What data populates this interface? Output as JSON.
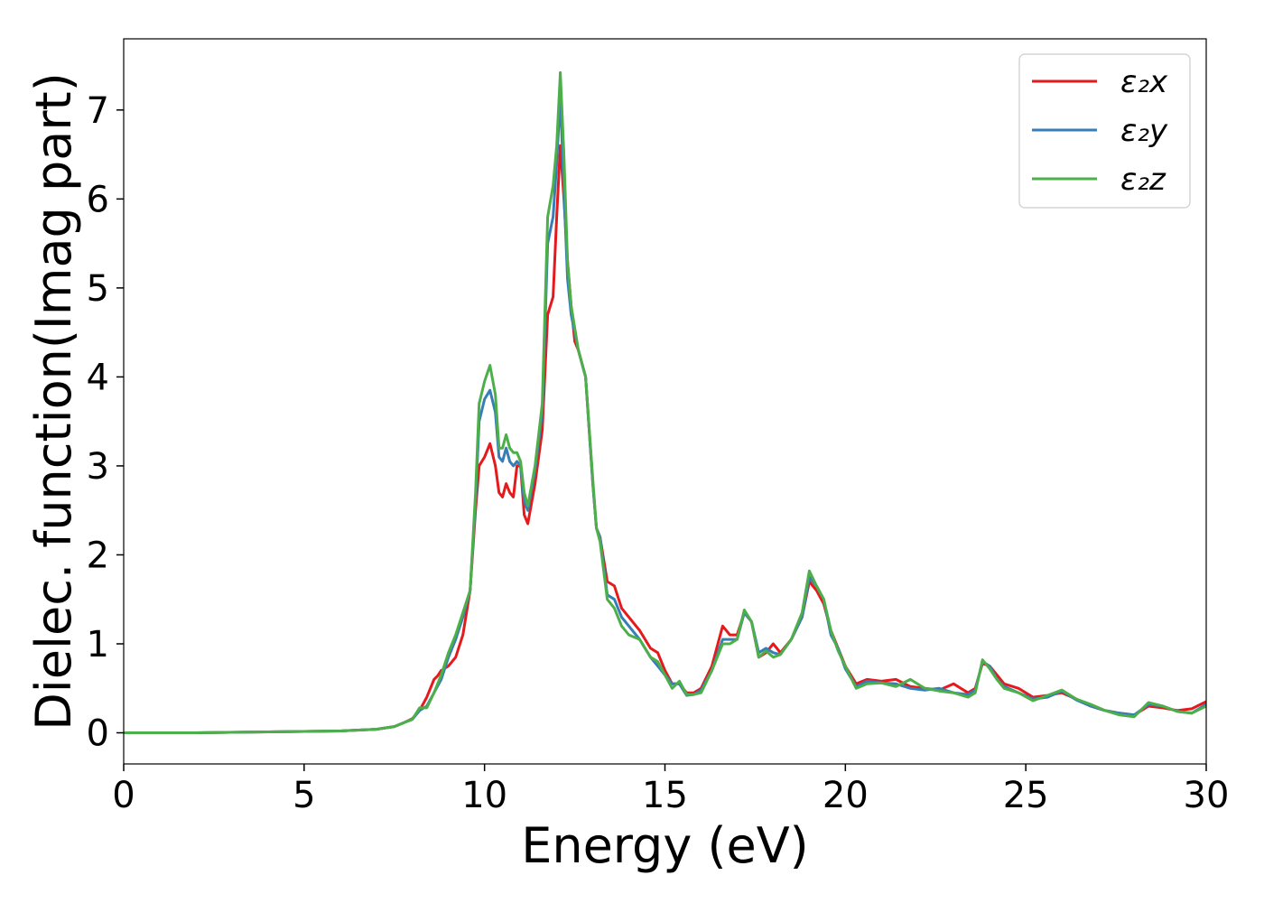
{
  "chart_data": {
    "type": "line",
    "xlabel": "Energy (eV)",
    "ylabel": "Dielec. function(Imag part)",
    "xlim": [
      0,
      30
    ],
    "ylim": [
      -0.35,
      7.8
    ],
    "xticks": [
      0,
      5,
      10,
      15,
      20,
      25,
      30
    ],
    "yticks": [
      0,
      1,
      2,
      3,
      4,
      5,
      6,
      7
    ],
    "grid": false,
    "legend_position": "top-right",
    "series": [
      {
        "name": "ε₂x",
        "color": "#e41a1c",
        "x": [
          0,
          2,
          4,
          6,
          7,
          7.5,
          7.8,
          8.0,
          8.2,
          8.4,
          8.6,
          8.7,
          8.8,
          9.0,
          9.2,
          9.4,
          9.6,
          9.75,
          9.85,
          10.0,
          10.15,
          10.3,
          10.4,
          10.5,
          10.6,
          10.7,
          10.8,
          10.9,
          11.0,
          11.1,
          11.2,
          11.4,
          11.6,
          11.75,
          11.9,
          12.0,
          12.1,
          12.2,
          12.3,
          12.4,
          12.5,
          12.6,
          12.8,
          13.0,
          13.1,
          13.2,
          13.4,
          13.6,
          13.8,
          14.0,
          14.3,
          14.6,
          14.8,
          15.0,
          15.2,
          15.4,
          15.6,
          15.8,
          16.0,
          16.3,
          16.6,
          16.8,
          17.0,
          17.2,
          17.4,
          17.6,
          17.8,
          18.0,
          18.2,
          18.5,
          18.8,
          19.0,
          19.2,
          19.4,
          19.6,
          19.8,
          20.0,
          20.3,
          20.6,
          21.0,
          21.4,
          21.8,
          22.2,
          22.6,
          23.0,
          23.4,
          23.6,
          23.8,
          24.0,
          24.2,
          24.4,
          24.8,
          25.2,
          25.6,
          26.0,
          26.4,
          26.8,
          27.2,
          27.6,
          28.0,
          28.4,
          28.8,
          29.2,
          29.6,
          30.0
        ],
        "y": [
          0.0,
          0.0,
          0.01,
          0.02,
          0.04,
          0.07,
          0.12,
          0.16,
          0.25,
          0.4,
          0.6,
          0.64,
          0.7,
          0.75,
          0.85,
          1.1,
          1.6,
          2.5,
          3.0,
          3.1,
          3.25,
          3.0,
          2.7,
          2.65,
          2.8,
          2.7,
          2.65,
          3.0,
          3.0,
          2.45,
          2.35,
          2.8,
          3.4,
          4.7,
          4.9,
          5.8,
          6.6,
          6.0,
          5.3,
          4.8,
          4.4,
          4.3,
          4.0,
          2.8,
          2.3,
          2.2,
          1.7,
          1.65,
          1.4,
          1.3,
          1.15,
          0.95,
          0.9,
          0.7,
          0.55,
          0.55,
          0.45,
          0.45,
          0.5,
          0.75,
          1.2,
          1.1,
          1.1,
          1.35,
          1.25,
          0.85,
          0.9,
          1.0,
          0.9,
          1.05,
          1.3,
          1.7,
          1.6,
          1.45,
          1.15,
          0.95,
          0.75,
          0.55,
          0.6,
          0.58,
          0.6,
          0.52,
          0.5,
          0.48,
          0.55,
          0.45,
          0.5,
          0.78,
          0.75,
          0.65,
          0.55,
          0.5,
          0.4,
          0.42,
          0.45,
          0.38,
          0.3,
          0.25,
          0.22,
          0.2,
          0.3,
          0.28,
          0.25,
          0.27,
          0.35
        ]
      },
      {
        "name": "ε₂y",
        "color": "#377eb8",
        "x": [
          0,
          2,
          4,
          6,
          7,
          7.5,
          7.8,
          8.0,
          8.2,
          8.4,
          8.6,
          8.8,
          9.0,
          9.2,
          9.4,
          9.6,
          9.75,
          9.85,
          10.0,
          10.15,
          10.3,
          10.4,
          10.5,
          10.6,
          10.7,
          10.8,
          10.9,
          11.0,
          11.1,
          11.2,
          11.4,
          11.6,
          11.75,
          11.9,
          12.0,
          12.1,
          12.2,
          12.3,
          12.4,
          12.5,
          12.6,
          12.8,
          13.0,
          13.1,
          13.2,
          13.4,
          13.6,
          13.8,
          14.0,
          14.3,
          14.6,
          14.8,
          15.0,
          15.2,
          15.4,
          15.6,
          15.8,
          16.0,
          16.3,
          16.6,
          16.8,
          17.0,
          17.2,
          17.4,
          17.6,
          17.8,
          18.0,
          18.2,
          18.5,
          18.8,
          19.0,
          19.2,
          19.4,
          19.6,
          19.8,
          20.0,
          20.3,
          20.6,
          21.0,
          21.4,
          21.8,
          22.2,
          22.6,
          23.0,
          23.4,
          23.6,
          23.8,
          24.0,
          24.2,
          24.4,
          24.8,
          25.2,
          25.6,
          26.0,
          26.4,
          26.8,
          27.2,
          27.6,
          28.0,
          28.4,
          28.8,
          29.2,
          29.6,
          30.0
        ],
        "y": [
          0.0,
          0.0,
          0.01,
          0.02,
          0.04,
          0.07,
          0.12,
          0.15,
          0.25,
          0.3,
          0.45,
          0.6,
          0.85,
          1.05,
          1.3,
          1.6,
          2.6,
          3.5,
          3.75,
          3.85,
          3.6,
          3.1,
          3.05,
          3.2,
          3.05,
          3.0,
          3.05,
          3.0,
          2.6,
          2.5,
          2.95,
          3.6,
          5.5,
          5.8,
          6.4,
          7.15,
          6.1,
          5.1,
          4.7,
          4.5,
          4.3,
          4.0,
          2.8,
          2.3,
          2.2,
          1.55,
          1.5,
          1.3,
          1.2,
          1.05,
          0.85,
          0.75,
          0.65,
          0.55,
          0.55,
          0.42,
          0.43,
          0.48,
          0.7,
          1.05,
          1.05,
          1.05,
          1.35,
          1.25,
          0.9,
          0.95,
          0.9,
          0.88,
          1.05,
          1.3,
          1.75,
          1.65,
          1.5,
          1.1,
          0.95,
          0.72,
          0.52,
          0.58,
          0.56,
          0.55,
          0.5,
          0.48,
          0.5,
          0.45,
          0.43,
          0.48,
          0.8,
          0.75,
          0.6,
          0.52,
          0.45,
          0.38,
          0.4,
          0.47,
          0.37,
          0.3,
          0.25,
          0.22,
          0.2,
          0.32,
          0.3,
          0.24,
          0.22,
          0.32
        ]
      },
      {
        "name": "ε₂z",
        "color": "#4daf4a",
        "x": [
          0,
          2,
          4,
          6,
          7,
          7.5,
          7.8,
          8.0,
          8.2,
          8.4,
          8.6,
          8.8,
          9.0,
          9.2,
          9.4,
          9.6,
          9.75,
          9.85,
          10.0,
          10.15,
          10.3,
          10.4,
          10.5,
          10.6,
          10.7,
          10.8,
          10.9,
          11.0,
          11.1,
          11.2,
          11.4,
          11.6,
          11.75,
          11.9,
          12.0,
          12.1,
          12.2,
          12.3,
          12.4,
          12.5,
          12.6,
          12.8,
          13.0,
          13.1,
          13.2,
          13.4,
          13.6,
          13.8,
          14.0,
          14.3,
          14.6,
          14.8,
          15.0,
          15.2,
          15.4,
          15.6,
          15.8,
          16.0,
          16.3,
          16.6,
          16.8,
          17.0,
          17.2,
          17.4,
          17.6,
          17.8,
          18.0,
          18.2,
          18.5,
          18.8,
          19.0,
          19.2,
          19.4,
          19.6,
          19.8,
          20.0,
          20.3,
          20.6,
          21.0,
          21.4,
          21.8,
          22.2,
          22.6,
          23.0,
          23.4,
          23.6,
          23.8,
          24.0,
          24.2,
          24.4,
          24.8,
          25.2,
          25.6,
          26.0,
          26.4,
          26.8,
          27.2,
          27.6,
          28.0,
          28.4,
          28.8,
          29.2,
          29.6,
          30.0
        ],
        "y": [
          0.0,
          0.0,
          0.01,
          0.02,
          0.04,
          0.07,
          0.12,
          0.15,
          0.28,
          0.28,
          0.45,
          0.65,
          0.9,
          1.1,
          1.35,
          1.6,
          2.7,
          3.7,
          3.95,
          4.13,
          3.8,
          3.2,
          3.2,
          3.35,
          3.2,
          3.15,
          3.15,
          3.05,
          2.7,
          2.55,
          3.0,
          3.7,
          5.8,
          6.15,
          6.6,
          7.42,
          6.5,
          5.3,
          4.8,
          4.55,
          4.3,
          4.0,
          2.85,
          2.3,
          2.15,
          1.5,
          1.4,
          1.2,
          1.1,
          1.05,
          0.85,
          0.8,
          0.65,
          0.5,
          0.58,
          0.43,
          0.43,
          0.45,
          0.7,
          1.0,
          1.0,
          1.05,
          1.38,
          1.25,
          0.85,
          0.92,
          0.85,
          0.88,
          1.05,
          1.35,
          1.82,
          1.65,
          1.5,
          1.15,
          0.92,
          0.75,
          0.5,
          0.55,
          0.56,
          0.52,
          0.6,
          0.5,
          0.47,
          0.45,
          0.4,
          0.45,
          0.82,
          0.72,
          0.6,
          0.5,
          0.45,
          0.36,
          0.42,
          0.48,
          0.38,
          0.32,
          0.25,
          0.2,
          0.18,
          0.34,
          0.3,
          0.24,
          0.22,
          0.3
        ]
      }
    ]
  }
}
